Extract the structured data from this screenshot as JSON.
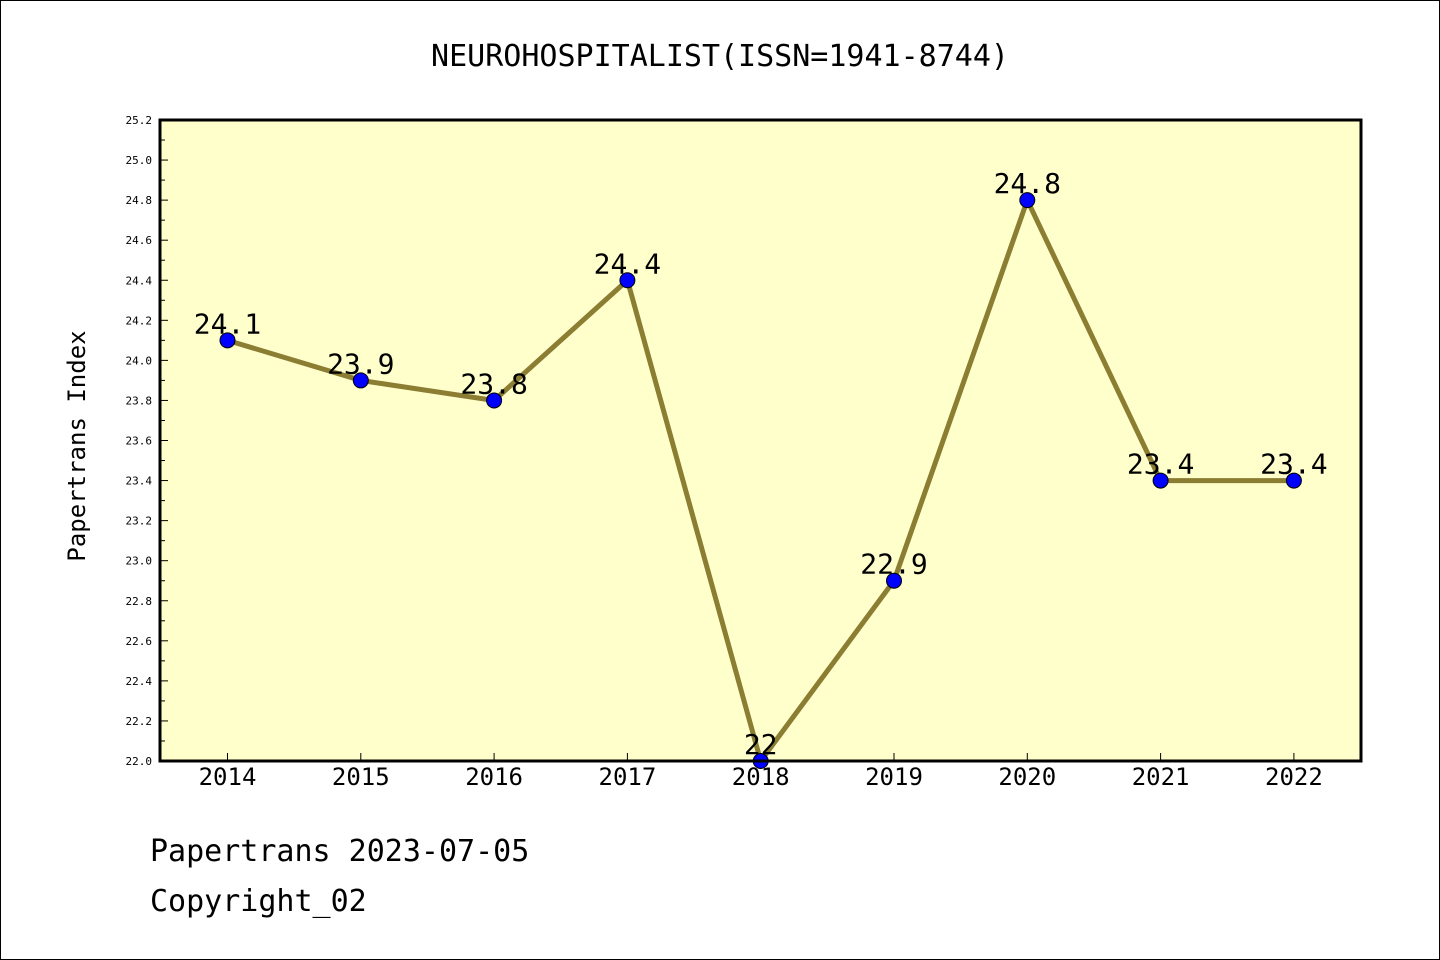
{
  "chart_data": {
    "type": "line",
    "title": "NEUROHOSPITALIST(ISSN=1941-8744)",
    "xlabel": "",
    "ylabel": "Papertrans Index",
    "categories": [
      "2014",
      "2015",
      "2016",
      "2017",
      "2018",
      "2019",
      "2020",
      "2021",
      "2022"
    ],
    "series": [
      {
        "values": [
          24.1,
          23.9,
          23.8,
          24.4,
          22.0,
          22.9,
          24.8,
          23.4,
          23.4
        ],
        "labels": [
          "24.1",
          "23.9",
          "23.8",
          "24.4",
          "22",
          "22.9",
          "24.8",
          "23.4",
          "23.4"
        ]
      }
    ],
    "ylim": [
      22.0,
      25.2
    ],
    "yticks": [
      "22.0",
      "22.2",
      "22.4",
      "22.6",
      "22.8",
      "23.0",
      "23.2",
      "23.4",
      "23.6",
      "23.8",
      "24.0",
      "24.2",
      "24.4",
      "24.6",
      "24.8",
      "25.0",
      "25.2"
    ],
    "grid": false,
    "colors": {
      "plot_background": "#ffffcc",
      "line": "#8b7d32",
      "marker": "#0000ff"
    }
  },
  "footer": {
    "line1": "Papertrans 2023-07-05",
    "line2": "Copyright_02"
  }
}
